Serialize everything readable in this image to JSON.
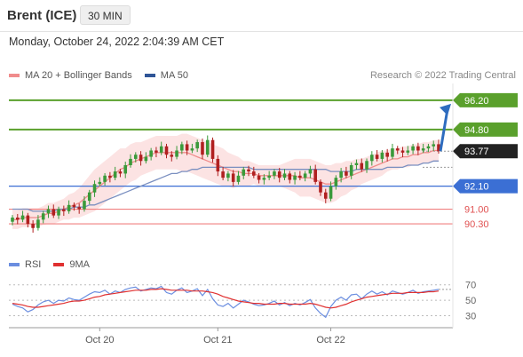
{
  "header": {
    "title": "Brent (ICE)",
    "interval": "30 MIN"
  },
  "timestamp": "Monday, October 24, 2022 2:04:39 AM CET",
  "legend": [
    {
      "label": "MA 20 + Bollinger Bands",
      "color": "#f08c8c"
    },
    {
      "label": "MA 50",
      "color": "#2f5597"
    }
  ],
  "credit": "Research © 2022 Trading Central",
  "rsi_legend": [
    {
      "label": "RSI",
      "color": "#6b8ee0"
    },
    {
      "label": "9MA",
      "color": "#e03030"
    }
  ],
  "colors": {
    "up": "#3a9a3a",
    "down": "#b02020",
    "resistance": "#5aa02c",
    "support": "#3b6fd4",
    "pivot": "#f08080",
    "current": "#222222",
    "arrow": "#2e6cbf"
  },
  "chart_data": [
    {
      "type": "candlestick",
      "y_domain": [
        89.2,
        97.0
      ],
      "x_ticks": [
        {
          "label": "Oct 20",
          "index": 17
        },
        {
          "label": "Oct 21",
          "index": 40
        },
        {
          "label": "Oct 22",
          "index": 62
        }
      ],
      "levels": [
        {
          "value": 96.2,
          "label": "96.20",
          "kind": "resistance",
          "style": "tag"
        },
        {
          "value": 94.8,
          "label": "94.80",
          "kind": "resistance",
          "style": "tag"
        },
        {
          "value": 93.77,
          "label": "93.77",
          "kind": "current",
          "style": "tag"
        },
        {
          "value": 92.1,
          "label": "92.10",
          "kind": "support",
          "style": "tag"
        },
        {
          "value": 91.0,
          "label": "91.00",
          "kind": "pivot",
          "style": "text"
        },
        {
          "value": 90.3,
          "label": "90.30",
          "kind": "pivot",
          "style": "text"
        }
      ],
      "closes": [
        90.6,
        90.5,
        90.7,
        90.3,
        90.1,
        90.5,
        90.8,
        91.0,
        90.7,
        91.0,
        90.9,
        91.2,
        91.1,
        91.0,
        91.4,
        91.8,
        92.2,
        92.3,
        92.6,
        92.5,
        92.8,
        92.7,
        93.1,
        93.4,
        93.6,
        93.3,
        93.5,
        93.8,
        93.7,
        94.0,
        93.6,
        93.5,
        93.8,
        94.1,
        93.8,
        93.9,
        94.2,
        93.6,
        94.3,
        93.4,
        92.8,
        92.5,
        92.7,
        92.3,
        92.6,
        92.9,
        92.8,
        92.6,
        92.4,
        92.5,
        92.6,
        92.8,
        92.5,
        92.7,
        92.4,
        92.6,
        92.5,
        92.7,
        92.9,
        92.3,
        91.8,
        91.5,
        92.1,
        92.5,
        92.8,
        92.6,
        93.1,
        93.2,
        92.9,
        93.3,
        93.6,
        93.4,
        93.7,
        93.5,
        93.9,
        93.8,
        93.7,
        93.8,
        94.0,
        93.8,
        93.9,
        94.0,
        94.1,
        93.77
      ],
      "open_first": 90.4,
      "ma20": [
        90.5,
        90.5,
        90.6,
        90.6,
        90.6,
        90.6,
        90.7,
        90.8,
        90.8,
        90.9,
        91.0,
        91.1,
        91.2,
        91.3,
        91.5,
        91.7,
        91.9,
        92.1,
        92.3,
        92.5,
        92.7,
        92.9,
        93.0,
        93.2,
        93.3,
        93.4,
        93.5,
        93.6,
        93.7,
        93.7,
        93.7,
        93.7,
        93.7,
        93.7,
        93.7,
        93.6,
        93.5,
        93.4,
        93.3,
        93.2,
        93.1,
        93.0,
        92.9,
        92.8,
        92.8,
        92.7,
        92.7,
        92.7,
        92.6,
        92.6,
        92.6,
        92.6,
        92.6,
        92.6,
        92.6,
        92.6,
        92.5,
        92.5,
        92.5,
        92.4,
        92.3,
        92.2,
        92.2,
        92.3,
        92.4,
        92.5,
        92.6,
        92.7,
        92.8,
        92.9,
        93.0,
        93.1,
        93.2,
        93.3,
        93.4,
        93.4,
        93.5,
        93.5,
        93.6,
        93.6,
        93.7,
        93.7,
        93.8,
        93.8
      ],
      "band_width": [
        0.45,
        0.45,
        0.45,
        0.45,
        0.45,
        0.45,
        0.45,
        0.5,
        0.5,
        0.5,
        0.5,
        0.6,
        0.6,
        0.7,
        0.8,
        0.9,
        1.0,
        1.0,
        1.0,
        1.0,
        1.0,
        1.0,
        0.9,
        0.9,
        0.9,
        0.8,
        0.8,
        0.8,
        0.8,
        0.8,
        0.8,
        0.8,
        0.8,
        0.9,
        0.9,
        0.9,
        0.9,
        0.9,
        0.9,
        0.9,
        0.9,
        0.9,
        0.8,
        0.8,
        0.7,
        0.6,
        0.6,
        0.5,
        0.5,
        0.5,
        0.5,
        0.5,
        0.5,
        0.6,
        0.7,
        0.8,
        0.9,
        0.9,
        0.9,
        0.9,
        0.9,
        0.9,
        0.9,
        0.9,
        0.8,
        0.8,
        0.7,
        0.7,
        0.6,
        0.6,
        0.6,
        0.6,
        0.6,
        0.5,
        0.5,
        0.5,
        0.5,
        0.5,
        0.5,
        0.5,
        0.5,
        0.5,
        0.5,
        0.5
      ],
      "ma50": [
        91.0,
        91.0,
        91.0,
        91.0,
        90.9,
        90.9,
        90.9,
        90.9,
        90.9,
        91.0,
        91.0,
        91.0,
        91.1,
        91.1,
        91.1,
        91.2,
        91.2,
        91.3,
        91.4,
        91.5,
        91.6,
        91.7,
        91.8,
        91.9,
        92.0,
        92.1,
        92.2,
        92.3,
        92.4,
        92.5,
        92.6,
        92.7,
        92.7,
        92.8,
        92.8,
        92.9,
        92.9,
        93.0,
        93.0,
        93.0,
        93.0,
        93.0,
        93.0,
        93.0,
        93.0,
        93.0,
        93.0,
        92.9,
        92.9,
        92.9,
        92.9,
        92.9,
        92.9,
        92.9,
        92.9,
        92.9,
        92.9,
        92.9,
        92.9,
        92.9,
        92.9,
        92.9,
        92.8,
        92.8,
        92.8,
        92.8,
        92.8,
        92.9,
        92.9,
        92.9,
        92.9,
        92.9,
        92.9,
        93.0,
        93.0,
        93.0,
        93.0,
        93.1,
        93.1,
        93.1,
        93.2,
        93.2,
        93.3,
        93.3
      ],
      "forecast": {
        "from": 93.77,
        "to": 96.2
      }
    },
    {
      "type": "line",
      "name": "RSI",
      "y_domain": [
        18,
        80
      ],
      "y_ticks": [
        70,
        50,
        30
      ],
      "x_ticks": [
        "Oct 20",
        "Oct 21",
        "Oct 22"
      ],
      "series": [
        {
          "name": "RSI",
          "values": [
            45,
            42,
            40,
            35,
            38,
            44,
            48,
            50,
            46,
            50,
            49,
            53,
            51,
            50,
            54,
            58,
            61,
            60,
            63,
            58,
            62,
            60,
            64,
            66,
            67,
            62,
            64,
            66,
            65,
            68,
            60,
            58,
            63,
            66,
            60,
            62,
            65,
            56,
            64,
            52,
            44,
            42,
            46,
            40,
            45,
            50,
            48,
            45,
            43,
            44,
            46,
            49,
            44,
            47,
            43,
            46,
            44,
            47,
            51,
            40,
            33,
            28,
            42,
            50,
            54,
            50,
            57,
            58,
            52,
            58,
            62,
            58,
            61,
            57,
            62,
            60,
            58,
            60,
            63,
            59,
            61,
            62,
            63,
            64
          ]
        },
        {
          "name": "9MA",
          "values": [
            46,
            45,
            44,
            42,
            41,
            41,
            42,
            43,
            44,
            45,
            46,
            48,
            49,
            49,
            50,
            52,
            54,
            55,
            57,
            58,
            59,
            60,
            61,
            62,
            63,
            63,
            63,
            64,
            64,
            65,
            64,
            63,
            63,
            63,
            63,
            62,
            62,
            62,
            61,
            60,
            58,
            55,
            53,
            51,
            49,
            48,
            47,
            46,
            46,
            45,
            45,
            45,
            46,
            46,
            45,
            45,
            45,
            45,
            46,
            45,
            43,
            41,
            40,
            41,
            43,
            45,
            48,
            50,
            52,
            54,
            55,
            56,
            57,
            58,
            59,
            59,
            59,
            60,
            60,
            60,
            60,
            61,
            61,
            62
          ]
        }
      ]
    }
  ]
}
